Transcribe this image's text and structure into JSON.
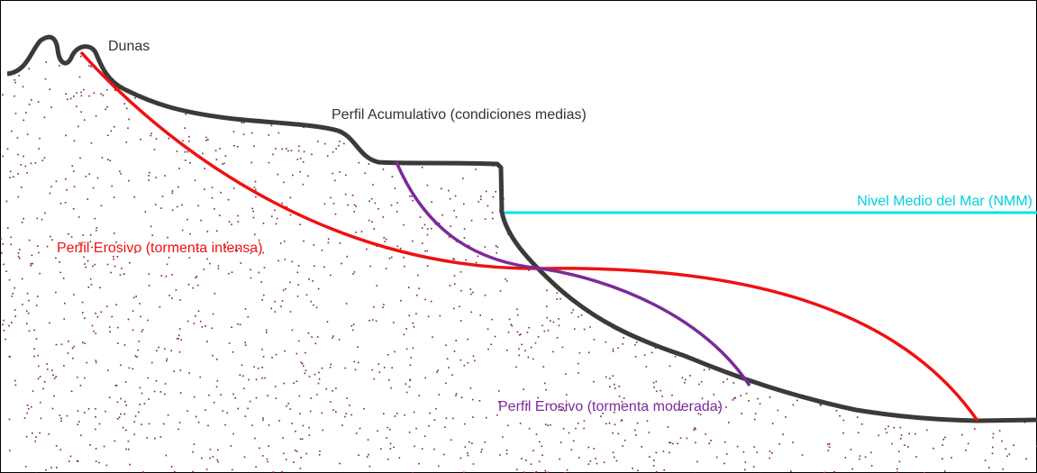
{
  "labels": {
    "dunas": "Dunas",
    "perfil_acumulativo": "Perfil Acumulativo (condiciones medias)",
    "nivel_medio": "Nivel Medio del Mar (NMM)",
    "perfil_erosivo_intenso": "Perfil Erosivo (tormenta intensa)",
    "perfil_erosivo_moderado": "Perfil Erosivo (tormenta moderada)"
  }
}
